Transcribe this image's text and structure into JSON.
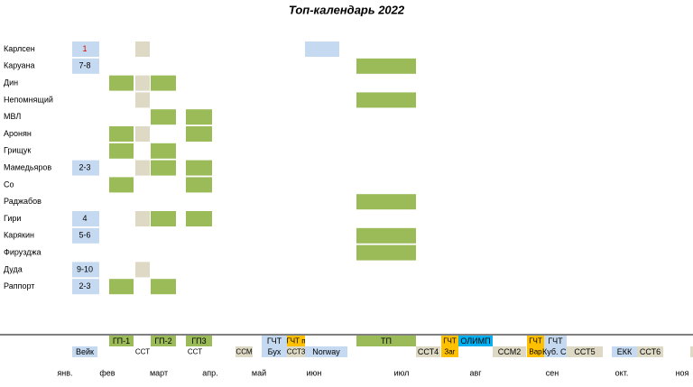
{
  "title": "Топ-календарь 2022",
  "players": [
    {
      "name": "Карлсен",
      "rank": "1"
    },
    {
      "name": "Каруана",
      "rank": "7-8"
    },
    {
      "name": "Дин"
    },
    {
      "name": "Непомнящий"
    },
    {
      "name": "МВЛ"
    },
    {
      "name": "Аронян"
    },
    {
      "name": "Грищук"
    },
    {
      "name": "Мамедьяров",
      "rank": "2-3"
    },
    {
      "name": "Со"
    },
    {
      "name": "Раджабов"
    },
    {
      "name": "Гири",
      "rank": "4"
    },
    {
      "name": "Карякин",
      "rank": "5-6"
    },
    {
      "name": "Фирузджа"
    },
    {
      "name": "Дуда",
      "rank": "9-10"
    },
    {
      "name": "Раппорт",
      "rank": "2-3"
    }
  ],
  "events": [
    "ГП-1",
    "ГП-2",
    "ГП3",
    "ГЧТ",
    "ГЧТ п",
    "ТП",
    "ГЧТ",
    "ОЛИМП",
    "ГЧТ",
    "ГЧТ",
    "Вейк",
    "ССТ",
    "ССТ",
    "ССМ",
    "Бух",
    "ССТ3",
    "Norway",
    "ССТ4",
    "Заг",
    "ССМ2",
    "Вар",
    "Куб. С.",
    "ССТ5",
    "ЕКК",
    "ССТ6"
  ],
  "months": [
    "янв.",
    "фев",
    "март",
    "апр.",
    "май",
    "июн",
    "июл",
    "авг",
    "сен",
    "окт.",
    "ноя"
  ]
}
